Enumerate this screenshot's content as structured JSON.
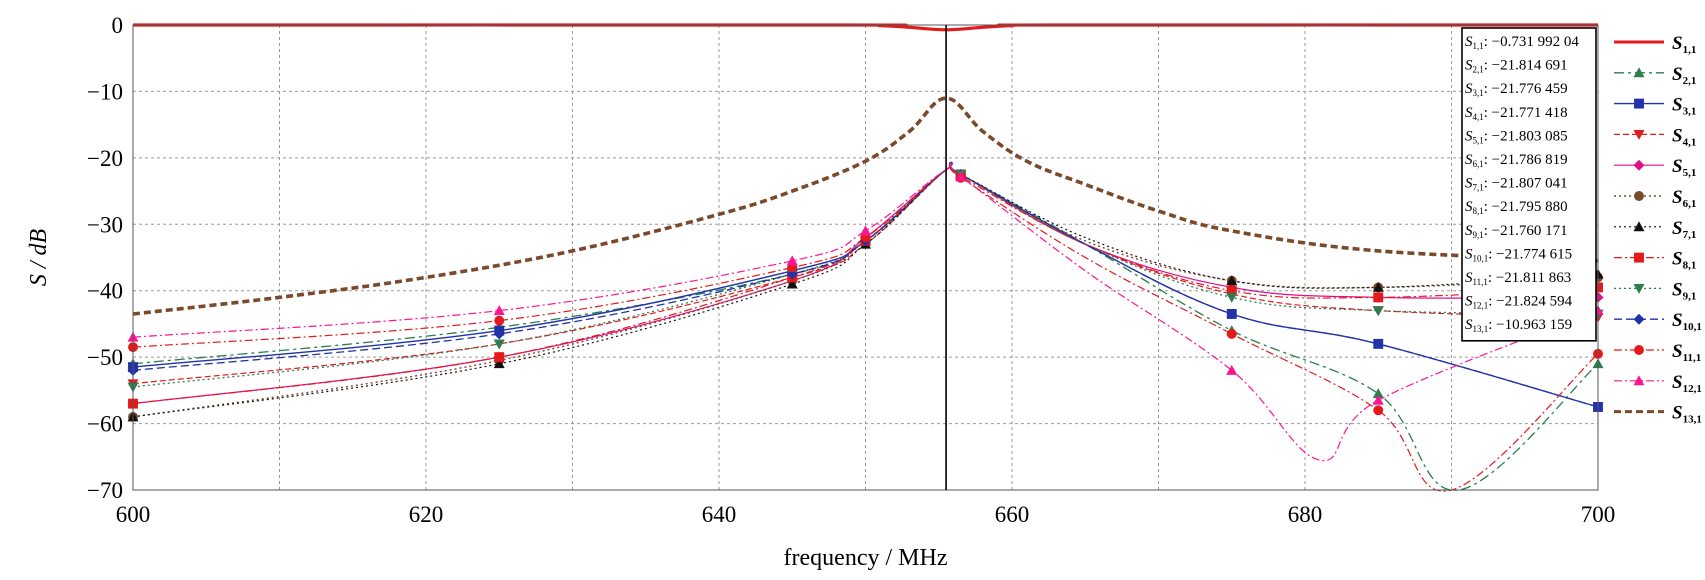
{
  "chart_data": {
    "type": "line",
    "xlabel": "frequency / MHz",
    "ylabel": "S / dB",
    "xlim": [
      600,
      700
    ],
    "ylim": [
      -70,
      0
    ],
    "x_ticks": [
      "600",
      "620",
      "640",
      "660",
      "680",
      "700"
    ],
    "y_ticks": [
      "0",
      "−10",
      "−20",
      "−30",
      "−40",
      "−50",
      "−60",
      "−70"
    ],
    "grid": true,
    "marker_x": 655.5,
    "x": [
      600,
      625,
      645,
      650,
      655.5,
      656.5,
      675,
      685,
      700
    ],
    "series": [
      {
        "name": "S1,1",
        "sub": "1,1",
        "readout": "−0.731 992 04",
        "color": "#e31a1c",
        "dash": "",
        "width": 3.2,
        "marker": "none",
        "points": [
          [
            600,
            0
          ],
          [
            648,
            0
          ],
          [
            651,
            -0.1
          ],
          [
            653,
            -0.35
          ],
          [
            655.5,
            -0.73
          ],
          [
            658,
            -0.35
          ],
          [
            660,
            -0.1
          ],
          [
            663,
            0
          ],
          [
            700,
            0
          ]
        ]
      },
      {
        "name": "S2,1",
        "sub": "2,1",
        "readout": "−21.814 691",
        "color": "#2e7d4f",
        "dash": "10,4,3,4",
        "width": 1.3,
        "marker": "triangle",
        "points": [
          [
            600,
            -51
          ],
          [
            625,
            -45.5
          ],
          [
            645,
            -37.5
          ],
          [
            650,
            -32.5
          ],
          [
            655.5,
            -21.8
          ],
          [
            656.5,
            -22.5
          ],
          [
            665,
            -33
          ],
          [
            675,
            -46
          ],
          [
            685,
            -55.5
          ],
          [
            690.5,
            -70
          ],
          [
            700,
            -51
          ]
        ],
        "marker_idx": [
          0,
          1,
          2,
          3,
          5,
          7,
          8,
          10
        ]
      },
      {
        "name": "S3,1",
        "sub": "3,1",
        "readout": "−21.776 459",
        "color": "#2233aa",
        "dash": "",
        "width": 1.4,
        "marker": "square",
        "points": [
          [
            600,
            -51.5
          ],
          [
            625,
            -46
          ],
          [
            645,
            -37
          ],
          [
            650,
            -32.5
          ],
          [
            655.5,
            -21.8
          ],
          [
            656.5,
            -22.5
          ],
          [
            665,
            -33
          ],
          [
            675,
            -43.5
          ],
          [
            685,
            -48
          ],
          [
            700,
            -57.5
          ]
        ],
        "marker_idx": [
          0,
          1,
          2,
          3,
          5,
          7,
          8,
          9
        ]
      },
      {
        "name": "S4,1",
        "sub": "4,1",
        "readout": "−21.771 418",
        "color": "#e31a1c",
        "dash": "6,3",
        "width": 1.2,
        "marker": "triangle-down",
        "points": [
          [
            600,
            -54
          ],
          [
            625,
            -48
          ],
          [
            645,
            -38
          ],
          [
            650,
            -33
          ],
          [
            655.5,
            -21.8
          ],
          [
            656.5,
            -22.5
          ],
          [
            665,
            -33
          ],
          [
            675,
            -40.5
          ],
          [
            685,
            -43
          ],
          [
            700,
            -44
          ]
        ],
        "marker_idx": [
          0,
          1,
          2,
          3,
          5,
          7,
          8,
          9
        ]
      },
      {
        "name": "S5,1",
        "sub": "5,1",
        "readout": "−21.803 085",
        "color": "#e0108a",
        "dash": "",
        "width": 1.2,
        "marker": "diamond",
        "points": [
          [
            600,
            -57
          ],
          [
            625,
            -50
          ],
          [
            645,
            -38.5
          ],
          [
            650,
            -32
          ],
          [
            655.5,
            -21.8
          ],
          [
            656.5,
            -22.5
          ],
          [
            665,
            -33
          ],
          [
            675,
            -39.5
          ],
          [
            685,
            -41
          ],
          [
            700,
            -41
          ]
        ],
        "marker_idx": [
          0,
          1,
          2,
          3,
          5,
          7,
          8,
          9
        ]
      },
      {
        "name": "S6,1",
        "sub": "6,1",
        "readout": "−21.786 819",
        "color": "#7b4a2a",
        "dash": "2,3",
        "width": 1.4,
        "marker": "circle",
        "points": [
          [
            600,
            -59
          ],
          [
            625,
            -50.5
          ],
          [
            645,
            -38.5
          ],
          [
            650,
            -32.5
          ],
          [
            655.5,
            -21.8
          ],
          [
            656.5,
            -22.5
          ],
          [
            665,
            -32.5
          ],
          [
            675,
            -38.5
          ],
          [
            685,
            -39.5
          ],
          [
            700,
            -38
          ]
        ],
        "marker_idx": [
          0,
          1,
          2,
          3,
          5,
          7,
          8,
          9
        ]
      },
      {
        "name": "S7,1",
        "sub": "7,1",
        "readout": "−21.807 041",
        "color": "#111111",
        "dash": "2,3",
        "width": 1.2,
        "marker": "triangle",
        "points": [
          [
            600,
            -59
          ],
          [
            625,
            -51
          ],
          [
            645,
            -39
          ],
          [
            650,
            -33
          ],
          [
            655.5,
            -21.8
          ],
          [
            656.5,
            -22.5
          ],
          [
            665,
            -32
          ],
          [
            675,
            -38.5
          ],
          [
            685,
            -39.5
          ],
          [
            700,
            -37.5
          ]
        ],
        "marker_idx": [
          0,
          1,
          2,
          3,
          5,
          7,
          8,
          9
        ]
      },
      {
        "name": "S8,1",
        "sub": "8,1",
        "readout": "−21.795 880",
        "color": "#e31a1c",
        "dash": "8,3,2,3",
        "width": 1.2,
        "marker": "square",
        "points": [
          [
            600,
            -57
          ],
          [
            625,
            -50
          ],
          [
            645,
            -38
          ],
          [
            650,
            -32.5
          ],
          [
            655.5,
            -21.8
          ],
          [
            656.5,
            -22.8
          ],
          [
            665,
            -33
          ],
          [
            675,
            -40
          ],
          [
            685,
            -41
          ],
          [
            700,
            -39.5
          ]
        ],
        "marker_idx": [
          0,
          1,
          2,
          3,
          5,
          7,
          8,
          9
        ]
      },
      {
        "name": "S9,1",
        "sub": "9,1",
        "readout": "−21.760 171",
        "color": "#2e7d4f",
        "dash": "2,3",
        "width": 1.3,
        "marker": "triangle-down",
        "points": [
          [
            600,
            -54.5
          ],
          [
            625,
            -48
          ],
          [
            645,
            -37.5
          ],
          [
            650,
            -32.5
          ],
          [
            655.5,
            -21.8
          ],
          [
            656.5,
            -22.5
          ],
          [
            665,
            -33
          ],
          [
            675,
            -41
          ],
          [
            685,
            -43
          ],
          [
            700,
            -43.5
          ]
        ],
        "marker_idx": [
          0,
          1,
          2,
          3,
          5,
          7,
          8,
          9
        ]
      },
      {
        "name": "S10,1",
        "sub": "10,1",
        "readout": "−21.774 615",
        "color": "#2233aa",
        "dash": "8,4",
        "width": 1.3,
        "marker": "diamond",
        "points": [
          [
            600,
            -52
          ],
          [
            625,
            -46.5
          ],
          [
            645,
            -37.5
          ],
          [
            650,
            -32.5
          ],
          [
            655.5,
            -21.8
          ],
          [
            656.5,
            -22.5
          ],
          [
            665,
            -33
          ],
          [
            675,
            -43.5
          ],
          [
            685,
            -48
          ],
          [
            700,
            -57.5
          ]
        ],
        "marker_idx": [
          0,
          1,
          2,
          3
        ]
      },
      {
        "name": "S11,1",
        "sub": "11,1",
        "readout": "−21.811 863",
        "color": "#e31a1c",
        "dash": "8,3,2,3",
        "width": 1.2,
        "marker": "circle",
        "points": [
          [
            600,
            -48.5
          ],
          [
            625,
            -44.5
          ],
          [
            645,
            -36.5
          ],
          [
            650,
            -32
          ],
          [
            655.5,
            -21.8
          ],
          [
            656.5,
            -23
          ],
          [
            665,
            -35
          ],
          [
            675,
            -46.5
          ],
          [
            685,
            -58
          ],
          [
            690,
            -70
          ],
          [
            700,
            -49.5
          ]
        ],
        "marker_idx": [
          0,
          1,
          2,
          3,
          5,
          7,
          8,
          10
        ]
      },
      {
        "name": "S12,1",
        "sub": "12,1",
        "readout": "−21.824 594",
        "color": "#ff1493",
        "dash": "8,3,2,3",
        "width": 1.2,
        "marker": "triangle",
        "points": [
          [
            600,
            -47
          ],
          [
            625,
            -43
          ],
          [
            645,
            -35.5
          ],
          [
            650,
            -31
          ],
          [
            655.5,
            -21.8
          ],
          [
            656.5,
            -22.8
          ],
          [
            665,
            -37
          ],
          [
            675,
            -52
          ],
          [
            681,
            -65.5
          ],
          [
            685,
            -56.5
          ],
          [
            700,
            -43
          ]
        ],
        "marker_idx": [
          0,
          1,
          2,
          3,
          5,
          7,
          9,
          10
        ]
      },
      {
        "name": "S13,1",
        "sub": "13,1",
        "readout": "−10.963 159",
        "color": "#7b4a2a",
        "dash": "7,4",
        "width": 3.6,
        "marker": "none",
        "points": [
          [
            600,
            -43.5
          ],
          [
            610,
            -41
          ],
          [
            620,
            -38
          ],
          [
            630,
            -34
          ],
          [
            640,
            -28.5
          ],
          [
            645,
            -25
          ],
          [
            650,
            -20.5
          ],
          [
            653,
            -16
          ],
          [
            655.5,
            -11
          ],
          [
            658,
            -16
          ],
          [
            661,
            -20.5
          ],
          [
            665,
            -24
          ],
          [
            670,
            -28
          ],
          [
            675,
            -31
          ],
          [
            685,
            -34
          ],
          [
            700,
            -35.5
          ]
        ]
      }
    ]
  }
}
